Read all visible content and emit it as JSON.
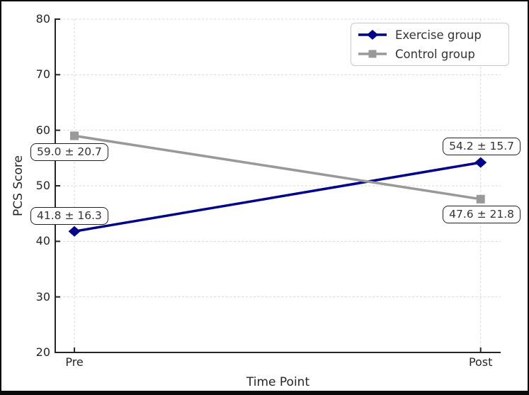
{
  "figure": {
    "background": "#ffffff",
    "frame_color": "#0a0a0a"
  },
  "chart_data": {
    "type": "line",
    "title": "",
    "xlabel": "Time Point",
    "ylabel": "PCS Score",
    "categories": [
      "Pre",
      "Post"
    ],
    "ylim": [
      20,
      80
    ],
    "yticks": [
      20,
      30,
      40,
      50,
      60,
      70,
      80
    ],
    "grid": true,
    "grid_style": "dashed",
    "grid_color": "#d8d8d8",
    "spine_color": "#262626",
    "legend_position": "upper right",
    "series": [
      {
        "name": "Exercise group",
        "values": [
          41.8,
          54.2
        ],
        "color": "#00008B",
        "marker": "diamond"
      },
      {
        "name": "Control group",
        "values": [
          59.0,
          47.6
        ],
        "color": "#999999",
        "marker": "square"
      }
    ],
    "annotations": [
      {
        "text": "41.8 ± 16.3",
        "series": "Exercise group",
        "point": "Pre"
      },
      {
        "text": "54.2 ± 15.7",
        "series": "Exercise group",
        "point": "Post"
      },
      {
        "text": "59.0 ± 20.7",
        "series": "Control group",
        "point": "Pre"
      },
      {
        "text": "47.6 ± 21.8",
        "series": "Control group",
        "point": "Post"
      }
    ]
  }
}
